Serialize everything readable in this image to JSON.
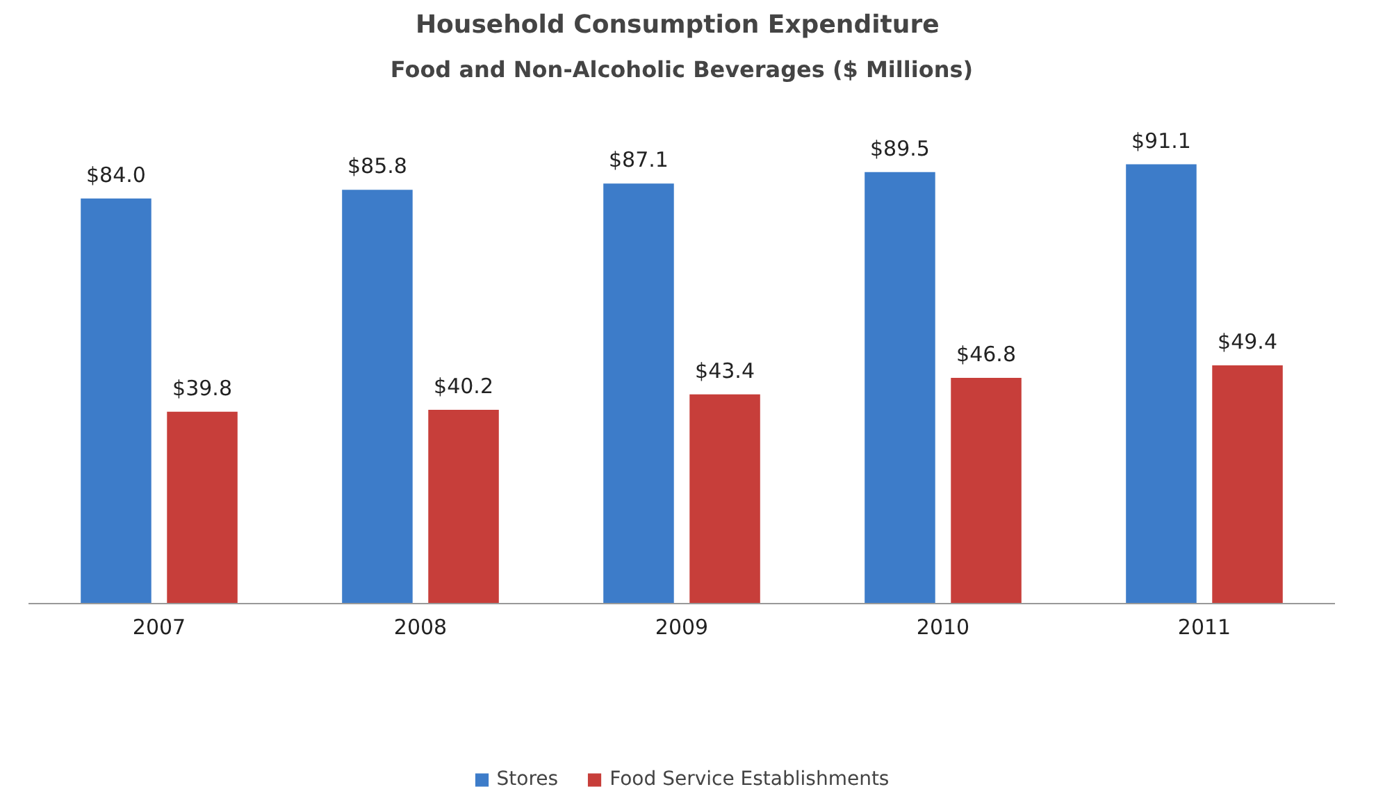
{
  "chart_data": {
    "type": "bar",
    "title": "Household Consumption  Expenditure",
    "subtitle": "Food and Non-Alcoholic Beverages ($ Millions)",
    "categories": [
      "2007",
      "2008",
      "2009",
      "2010",
      "2011"
    ],
    "series": [
      {
        "name": "Stores",
        "color": "#3d7cc9",
        "values": [
          84.0,
          85.8,
          87.1,
          89.5,
          91.1
        ],
        "value_labels": [
          "$84.0",
          "$85.8",
          "$87.1",
          "$89.5",
          "$91.1"
        ]
      },
      {
        "name": "Food Service Establishments",
        "color": "#c73e3a",
        "values": [
          39.8,
          40.2,
          43.4,
          46.8,
          49.4
        ],
        "value_labels": [
          "$39.8",
          "$40.2",
          "$43.4",
          "$46.8",
          "$49.4"
        ]
      }
    ],
    "legend": "bottom"
  }
}
